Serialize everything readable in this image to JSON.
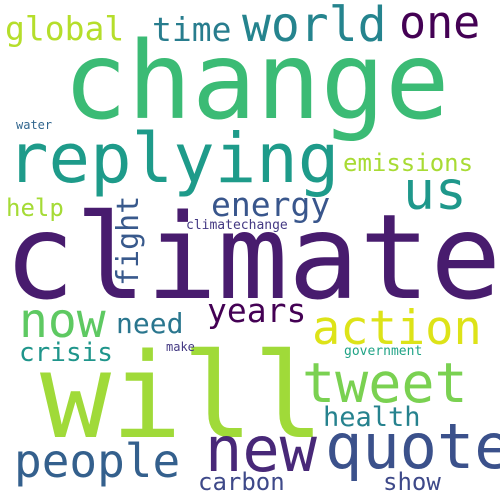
{
  "words": [
    {
      "text": "climate",
      "color": "#481c6e",
      "orientation": "horizontal"
    },
    {
      "text": "change",
      "color": "#3bbb75",
      "orientation": "horizontal"
    },
    {
      "text": "will",
      "color": "#a0da39",
      "orientation": "horizontal"
    },
    {
      "text": "replying",
      "color": "#1e9b8a",
      "orientation": "horizontal"
    },
    {
      "text": "quote",
      "color": "#3b518b",
      "orientation": "horizontal"
    },
    {
      "text": "tweet",
      "color": "#7ad151",
      "orientation": "horizontal"
    },
    {
      "text": "new",
      "color": "#482878",
      "orientation": "horizontal"
    },
    {
      "text": "people",
      "color": "#34608d",
      "orientation": "horizontal"
    },
    {
      "text": "action",
      "color": "#dde318",
      "orientation": "horizontal"
    },
    {
      "text": "world",
      "color": "#25848e",
      "orientation": "horizontal"
    },
    {
      "text": "us",
      "color": "#1f988b",
      "orientation": "horizontal"
    },
    {
      "text": "now",
      "color": "#5ec962",
      "orientation": "horizontal"
    },
    {
      "text": "one",
      "color": "#440154",
      "orientation": "horizontal"
    },
    {
      "text": "years",
      "color": "#440154",
      "orientation": "horizontal"
    },
    {
      "text": "need",
      "color": "#2a768e",
      "orientation": "horizontal"
    },
    {
      "text": "energy",
      "color": "#39568c",
      "orientation": "horizontal"
    },
    {
      "text": "fight",
      "color": "#38598c",
      "orientation": "vertical"
    },
    {
      "text": "global",
      "color": "#b5de2b",
      "orientation": "horizontal"
    },
    {
      "text": "time",
      "color": "#287d8e",
      "orientation": "horizontal"
    },
    {
      "text": "crisis",
      "color": "#1f958b",
      "orientation": "horizontal"
    },
    {
      "text": "health",
      "color": "#26828e",
      "orientation": "horizontal"
    },
    {
      "text": "emissions",
      "color": "#a8db34",
      "orientation": "horizontal"
    },
    {
      "text": "carbon",
      "color": "#3e4989",
      "orientation": "horizontal"
    },
    {
      "text": "show",
      "color": "#3e4989",
      "orientation": "horizontal"
    },
    {
      "text": "help",
      "color": "#a5db36",
      "orientation": "horizontal"
    },
    {
      "text": "government",
      "color": "#20a386",
      "orientation": "horizontal"
    },
    {
      "text": "climatechange",
      "color": "#443983",
      "orientation": "horizontal"
    },
    {
      "text": "water",
      "color": "#31668e",
      "orientation": "horizontal"
    },
    {
      "text": "make",
      "color": "#443983",
      "orientation": "horizontal"
    }
  ]
}
